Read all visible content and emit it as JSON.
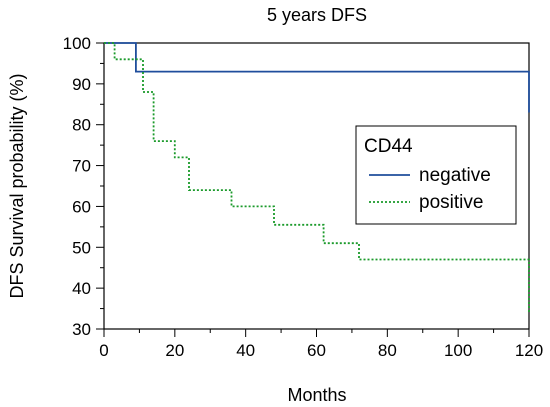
{
  "chart_data": {
    "type": "line",
    "title": "5 years DFS",
    "xlabel": "Months",
    "ylabel": "DFS Survival probability (%)",
    "xlim": [
      0,
      120
    ],
    "ylim": [
      30,
      100
    ],
    "x_ticks": [
      0,
      20,
      40,
      60,
      80,
      100,
      120
    ],
    "y_ticks": [
      30,
      40,
      50,
      60,
      70,
      80,
      90,
      100
    ],
    "grid": false,
    "legend": {
      "title": "CD44",
      "position": "center-right"
    },
    "series": [
      {
        "name": "negative",
        "style": "solid",
        "color": "#1f4e9c",
        "step": true,
        "points": [
          [
            0,
            100
          ],
          [
            9,
            100
          ],
          [
            9,
            93
          ],
          [
            120,
            93
          ],
          [
            120,
            83
          ]
        ]
      },
      {
        "name": "positive",
        "style": "dotted",
        "color": "#1a9a2a",
        "step": true,
        "points": [
          [
            0,
            100
          ],
          [
            3,
            100
          ],
          [
            3,
            96
          ],
          [
            11,
            96
          ],
          [
            11,
            88
          ],
          [
            14,
            88
          ],
          [
            14,
            76
          ],
          [
            20,
            76
          ],
          [
            20,
            72
          ],
          [
            24,
            72
          ],
          [
            24,
            64
          ],
          [
            36,
            64
          ],
          [
            36,
            60
          ],
          [
            48,
            60
          ],
          [
            48,
            55.5
          ],
          [
            62,
            55.5
          ],
          [
            62,
            51
          ],
          [
            72,
            51
          ],
          [
            72,
            47
          ],
          [
            120,
            47
          ],
          [
            120,
            34
          ]
        ]
      }
    ]
  }
}
